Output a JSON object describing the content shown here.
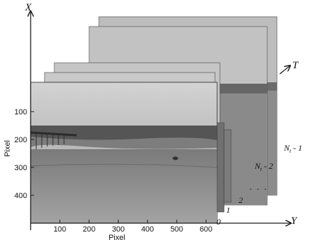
{
  "axes": {
    "x_axis_label": "X",
    "y_axis_label": "Y",
    "t_axis_label": "T",
    "ylabel": "Pixel",
    "xlabel": "Pixel",
    "left_ticks": [
      "100",
      "200",
      "300",
      "400"
    ],
    "bottom_ticks": [
      "100",
      "200",
      "300",
      "400",
      "500",
      "600"
    ]
  },
  "frames": {
    "labels": [
      "0",
      "1",
      "2",
      "N",
      "N"
    ],
    "index_subscripts": [
      "",
      "",
      "",
      "t",
      "t"
    ],
    "index_suffixes": [
      "",
      "",
      "",
      " - 1",
      " - 2"
    ],
    "ellipsis": ". . ."
  },
  "colors": {
    "axis": "#1a1a1a",
    "sky": "#b7b7b7",
    "sea": "#5a5a5a",
    "sand": "#8d8d8d"
  }
}
